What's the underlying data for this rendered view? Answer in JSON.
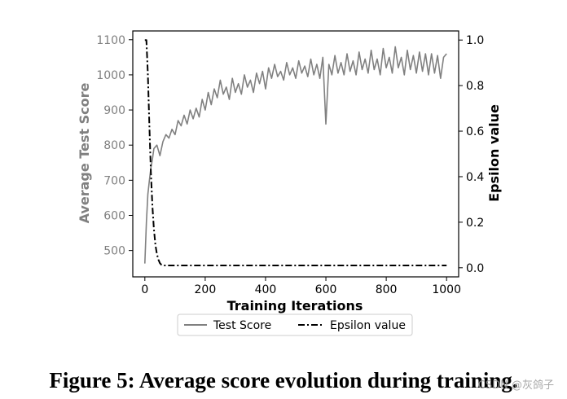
{
  "caption": "Figure 5: Average score evolution during training.",
  "watermark": "CSDN @灰鸽子",
  "chart_data": {
    "type": "line",
    "xlabel": "Training Iterations",
    "ylabel_left": "Average Test Score",
    "ylabel_right": "Epsilon value",
    "xlim": [
      -40,
      1040
    ],
    "ylim_left": [
      425,
      1125
    ],
    "ylim_right": [
      -0.04,
      1.04
    ],
    "xticks": [
      0,
      200,
      400,
      600,
      800,
      1000
    ],
    "yticks_left": [
      500,
      600,
      700,
      800,
      900,
      1000,
      1100
    ],
    "yticks_right": [
      0.0,
      0.2,
      0.4,
      0.6,
      0.8,
      1.0
    ],
    "grid": false,
    "legend_position": "below-center",
    "colors": {
      "test_score": "#808080",
      "epsilon": "#000000",
      "left_axis_text": "#808080"
    },
    "series": [
      {
        "name": "Test Score",
        "axis": "left",
        "style": "solid",
        "x": [
          0,
          5,
          10,
          15,
          20,
          25,
          30,
          40,
          50,
          60,
          70,
          80,
          90,
          100,
          110,
          120,
          130,
          140,
          150,
          160,
          170,
          180,
          190,
          200,
          210,
          220,
          230,
          240,
          250,
          260,
          270,
          280,
          290,
          300,
          310,
          320,
          330,
          340,
          350,
          360,
          370,
          380,
          390,
          400,
          410,
          420,
          430,
          440,
          450,
          460,
          470,
          480,
          490,
          500,
          510,
          520,
          530,
          540,
          550,
          560,
          570,
          580,
          590,
          600,
          610,
          620,
          630,
          640,
          650,
          660,
          670,
          680,
          690,
          700,
          710,
          720,
          730,
          740,
          750,
          760,
          770,
          780,
          790,
          800,
          810,
          820,
          830,
          840,
          850,
          860,
          870,
          880,
          890,
          900,
          910,
          920,
          930,
          940,
          950,
          960,
          970,
          980,
          990,
          1000
        ],
        "values": [
          463,
          580,
          660,
          700,
          735,
          760,
          790,
          800,
          770,
          810,
          830,
          820,
          845,
          830,
          870,
          855,
          885,
          860,
          900,
          875,
          905,
          880,
          930,
          900,
          950,
          915,
          960,
          935,
          985,
          945,
          965,
          930,
          990,
          950,
          975,
          945,
          1000,
          965,
          985,
          950,
          1005,
          975,
          1010,
          960,
          1020,
          990,
          1030,
          995,
          1010,
          985,
          1035,
          1000,
          1020,
          990,
          1040,
          1005,
          1025,
          995,
          1045,
          1000,
          1030,
          990,
          1050,
          860,
          1030,
          1000,
          1055,
          1005,
          1035,
          1000,
          1060,
          1010,
          1040,
          1000,
          1065,
          1015,
          1045,
          1005,
          1070,
          1015,
          1045,
          1000,
          1075,
          1020,
          1050,
          1005,
          1080,
          1020,
          1050,
          1000,
          1070,
          1015,
          1055,
          1005,
          1065,
          1010,
          1060,
          1000,
          1060,
          1005,
          1055,
          990,
          1050,
          1060
        ]
      },
      {
        "name": "Epsilon value",
        "axis": "right",
        "style": "dashdot",
        "x": [
          0,
          5,
          10,
          15,
          20,
          25,
          30,
          35,
          40,
          45,
          50,
          55,
          60,
          70,
          100,
          200,
          300,
          400,
          500,
          600,
          700,
          800,
          900,
          1000
        ],
        "values": [
          1.0,
          1.0,
          0.85,
          0.62,
          0.42,
          0.27,
          0.17,
          0.1,
          0.06,
          0.035,
          0.02,
          0.013,
          0.01,
          0.01,
          0.01,
          0.01,
          0.01,
          0.01,
          0.01,
          0.01,
          0.01,
          0.01,
          0.01,
          0.01
        ]
      }
    ]
  }
}
